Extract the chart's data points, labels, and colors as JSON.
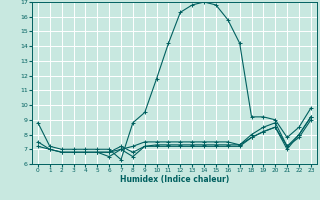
{
  "title": "",
  "xlabel": "Humidex (Indice chaleur)",
  "ylabel": "",
  "xlim": [
    -0.5,
    23.5
  ],
  "ylim": [
    6,
    17
  ],
  "xticks": [
    0,
    1,
    2,
    3,
    4,
    5,
    6,
    7,
    8,
    9,
    10,
    11,
    12,
    13,
    14,
    15,
    16,
    17,
    18,
    19,
    20,
    21,
    22,
    23
  ],
  "yticks": [
    6,
    7,
    8,
    9,
    10,
    11,
    12,
    13,
    14,
    15,
    16,
    17
  ],
  "background_color": "#c8e8e0",
  "grid_color": "#ffffff",
  "line_color": "#006060",
  "lines": [
    {
      "x": [
        0,
        1,
        2,
        3,
        4,
        5,
        6,
        7,
        8,
        9,
        10,
        11,
        12,
        13,
        14,
        15,
        16,
        17,
        18,
        19,
        20,
        21,
        22,
        23
      ],
      "y": [
        8.8,
        7.2,
        7.0,
        7.0,
        7.0,
        7.0,
        7.0,
        6.3,
        8.8,
        9.5,
        11.8,
        14.2,
        16.3,
        16.8,
        17.0,
        16.8,
        15.8,
        14.2,
        9.2,
        9.2,
        9.0,
        7.8,
        8.5,
        9.8
      ]
    },
    {
      "x": [
        0,
        1,
        2,
        3,
        4,
        5,
        6,
        7,
        8,
        9,
        10,
        11,
        12,
        13,
        14,
        15,
        16,
        17,
        18,
        19,
        20,
        21,
        22,
        23
      ],
      "y": [
        7.2,
        7.0,
        6.8,
        6.8,
        6.8,
        6.8,
        6.5,
        7.0,
        7.2,
        7.5,
        7.5,
        7.5,
        7.5,
        7.5,
        7.5,
        7.5,
        7.5,
        7.3,
        7.8,
        8.2,
        8.5,
        7.2,
        8.0,
        9.2
      ]
    },
    {
      "x": [
        0,
        1,
        2,
        3,
        4,
        5,
        6,
        7,
        8,
        9,
        10,
        11,
        12,
        13,
        14,
        15,
        16,
        17,
        18,
        19,
        20,
        21,
        22,
        23
      ],
      "y": [
        7.5,
        7.0,
        6.8,
        6.8,
        6.8,
        6.8,
        6.8,
        7.2,
        6.8,
        7.2,
        7.3,
        7.3,
        7.3,
        7.3,
        7.3,
        7.3,
        7.3,
        7.3,
        8.0,
        8.5,
        8.8,
        7.2,
        7.8,
        9.0
      ]
    },
    {
      "x": [
        5,
        6,
        7,
        8,
        9,
        10,
        11,
        12,
        13,
        14,
        15,
        16,
        17,
        18,
        19,
        20,
        21,
        22,
        23
      ],
      "y": [
        6.8,
        6.8,
        7.0,
        6.5,
        7.2,
        7.2,
        7.2,
        7.2,
        7.2,
        7.2,
        7.2,
        7.2,
        7.2,
        7.8,
        8.2,
        8.5,
        7.0,
        8.0,
        9.2
      ]
    }
  ]
}
